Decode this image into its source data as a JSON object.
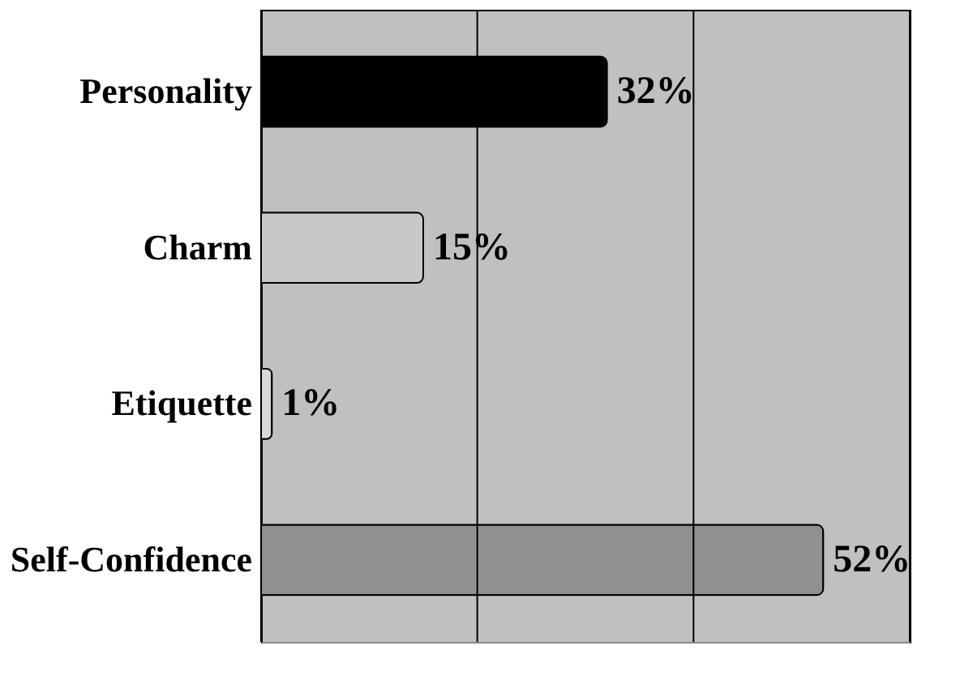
{
  "chart_data": {
    "type": "bar",
    "orientation": "horizontal",
    "categories": [
      "Personality",
      "Charm",
      "Etiquette",
      "Self-Confidence"
    ],
    "values": [
      32,
      15,
      1,
      52
    ],
    "value_labels": [
      "32%",
      "15%",
      "1%",
      "52%"
    ],
    "colors": [
      "#000000",
      "#c8c8c8",
      "#d8d8d8",
      "#909090"
    ],
    "xlim": [
      0,
      60
    ],
    "xticks": [
      {
        "value": 0,
        "label": null
      },
      {
        "value": 20,
        "label": null
      },
      {
        "value": 40,
        "label": null
      },
      {
        "value": 60,
        "label": null
      }
    ],
    "tick_labels": "y",
    "grid": "x"
  }
}
